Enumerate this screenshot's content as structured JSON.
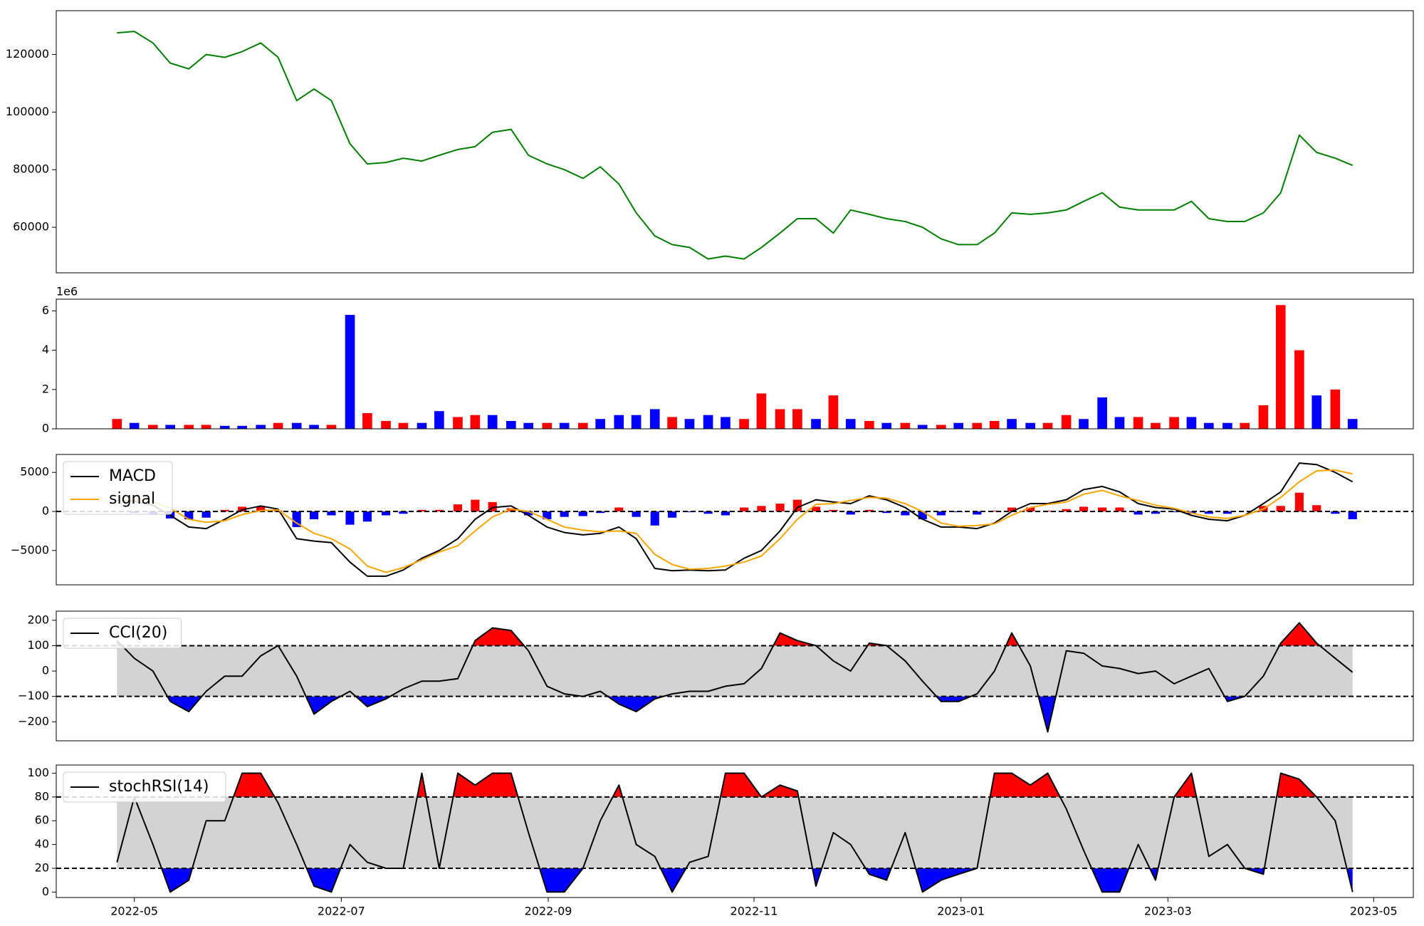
{
  "chart_data": {
    "type": "multi-panel",
    "x": [
      2022.319,
      2022.333,
      2022.348,
      2022.362,
      2022.377,
      2022.391,
      2022.406,
      2022.42,
      2022.435,
      2022.449,
      2022.464,
      2022.478,
      2022.492,
      2022.507,
      2022.521,
      2022.536,
      2022.55,
      2022.565,
      2022.579,
      2022.594,
      2022.608,
      2022.622,
      2022.637,
      2022.651,
      2022.666,
      2022.68,
      2022.695,
      2022.709,
      2022.724,
      2022.738,
      2022.753,
      2022.767,
      2022.781,
      2022.796,
      2022.81,
      2022.825,
      2022.839,
      2022.854,
      2022.868,
      2022.883,
      2022.897,
      2022.911,
      2022.926,
      2022.94,
      2022.955,
      2022.969,
      2022.984,
      2022.998,
      2023.013,
      2023.027,
      2023.041,
      2023.056,
      2023.07,
      2023.085,
      2023.099,
      2023.114,
      2023.128,
      2023.143,
      2023.157,
      2023.172,
      2023.186,
      2023.2,
      2023.215,
      2023.229,
      2023.244,
      2023.258,
      2023.273,
      2023.287,
      2023.302,
      2023.316
    ],
    "xlim": [
      2022.27,
      2023.365
    ],
    "xticks": [
      {
        "value": 2022.333,
        "label": "2022-05"
      },
      {
        "value": 2022.5,
        "label": "2022-07"
      },
      {
        "value": 2022.667,
        "label": "2022-09"
      },
      {
        "value": 2022.833,
        "label": "2022-11"
      },
      {
        "value": 2023.0,
        "label": "2023-01"
      },
      {
        "value": 2023.167,
        "label": "2023-03"
      },
      {
        "value": 2023.333,
        "label": "2023-05"
      }
    ],
    "panels": [
      {
        "type": "line",
        "color": "green",
        "values": [
          127500,
          128000,
          124000,
          117000,
          115000,
          120000,
          119000,
          121000,
          124000,
          119000,
          104000,
          108000,
          104000,
          89000,
          82000,
          82500,
          84000,
          83000,
          85000,
          87000,
          88000,
          93000,
          94000,
          85000,
          82000,
          80000,
          77000,
          81000,
          75000,
          65000,
          57000,
          54000,
          53000,
          49000,
          50000,
          49000,
          53000,
          58000,
          63000,
          63000,
          58000,
          66000,
          64500,
          63000,
          62000,
          60000,
          56000,
          54000,
          54000,
          58000,
          65000,
          64500,
          65000,
          66000,
          69000,
          72000,
          67000,
          66000,
          66000,
          66000,
          69000,
          63000,
          62000,
          62000,
          65000,
          72000,
          92000,
          86000,
          84000,
          81500
        ],
        "ylim": [
          44200,
          135200
        ],
        "yticks": [
          60000,
          80000,
          100000,
          120000
        ]
      },
      {
        "type": "bar",
        "offset_label": "1e6",
        "values": [
          0.5,
          0.3,
          0.2,
          0.2,
          0.2,
          0.2,
          0.15,
          0.15,
          0.2,
          0.3,
          0.3,
          0.2,
          0.2,
          5.8,
          0.8,
          0.4,
          0.3,
          0.3,
          0.9,
          0.6,
          0.7,
          0.7,
          0.4,
          0.3,
          0.3,
          0.3,
          0.3,
          0.5,
          0.7,
          0.7,
          1.0,
          0.6,
          0.5,
          0.7,
          0.6,
          0.5,
          1.8,
          1.0,
          1.0,
          0.5,
          1.7,
          0.5,
          0.4,
          0.3,
          0.3,
          0.2,
          0.2,
          0.3,
          0.3,
          0.4,
          0.5,
          0.3,
          0.3,
          0.7,
          0.5,
          1.6,
          0.6,
          0.6,
          0.3,
          0.6,
          0.6,
          0.3,
          0.3,
          0.3,
          1.2,
          6.3,
          4.0,
          1.7,
          2.0,
          0.5
        ],
        "colors": [
          "red",
          "blue",
          "red",
          "blue",
          "red",
          "red",
          "blue",
          "blue",
          "blue",
          "red",
          "blue",
          "blue",
          "red",
          "blue",
          "red",
          "red",
          "red",
          "blue",
          "blue",
          "red",
          "red",
          "blue",
          "blue",
          "blue",
          "red",
          "blue",
          "red",
          "blue",
          "blue",
          "blue",
          "blue",
          "red",
          "blue",
          "blue",
          "blue",
          "red",
          "red",
          "red",
          "red",
          "blue",
          "red",
          "blue",
          "red",
          "blue",
          "red",
          "blue",
          "red",
          "blue",
          "red",
          "red",
          "blue",
          "blue",
          "red",
          "red",
          "blue",
          "blue",
          "blue",
          "red",
          "red",
          "red",
          "blue",
          "blue",
          "blue",
          "red",
          "red",
          "red",
          "red",
          "blue",
          "red",
          "blue"
        ],
        "ylim": [
          0,
          6.6
        ],
        "yticks": [
          0,
          2,
          4,
          6
        ]
      },
      {
        "type": "macd",
        "legend": "upper left",
        "hlines": [
          0
        ],
        "series": [
          {
            "name": "MACD",
            "color": "black",
            "values": [
              1500,
              1300,
              800,
              -500,
              -2000,
              -2200,
              -1000,
              200,
              700,
              300,
              -3500,
              -3800,
              -4000,
              -6500,
              -8300,
              -8300,
              -7500,
              -6000,
              -5000,
              -3500,
              -1000,
              500,
              700,
              -500,
              -2000,
              -2700,
              -3000,
              -2800,
              -2000,
              -3500,
              -7300,
              -7600,
              -7500,
              -7600,
              -7500,
              -6000,
              -5000,
              -2500,
              500,
              1500,
              1200,
              1000,
              2000,
              1500,
              500,
              -1000,
              -2000,
              -2000,
              -2200,
              -1500,
              0,
              1000,
              1000,
              1500,
              2800,
              3200,
              2500,
              1000,
              500,
              300,
              -500,
              -1000,
              -1200,
              -500,
              1000,
              2500,
              6200,
              6000,
              5000,
              3800
            ]
          },
          {
            "name": "signal",
            "color": "orange",
            "values": [
              1500,
              1500,
              1200,
              400,
              -1000,
              -1400,
              -1200,
              -400,
              100,
              200,
              -1500,
              -2800,
              -3500,
              -4800,
              -7000,
              -7800,
              -7200,
              -6200,
              -5200,
              -4400,
              -2500,
              -700,
              300,
              0,
              -1000,
              -2000,
              -2400,
              -2600,
              -2500,
              -2800,
              -5500,
              -6800,
              -7400,
              -7300,
              -7000,
              -6500,
              -5700,
              -3500,
              -1000,
              900,
              1000,
              1400,
              1800,
              1700,
              1000,
              0,
              -1500,
              -1900,
              -1800,
              -1600,
              -500,
              500,
              900,
              1200,
              2200,
              2700,
              2000,
              1400,
              800,
              400,
              -200,
              -700,
              -900,
              -500,
              300,
              1800,
              3800,
              5200,
              5300,
              4800
            ]
          }
        ],
        "histogram": {
          "positive_color": "red",
          "negative_color": "blue",
          "values": [
            0,
            -200,
            -400,
            -900,
            -1000,
            -800,
            200,
            600,
            600,
            100,
            -2000,
            -1000,
            -500,
            -1700,
            -1300,
            -500,
            -300,
            200,
            200,
            900,
            1500,
            1200,
            400,
            -500,
            -1000,
            -700,
            -600,
            -200,
            500,
            -700,
            -1800,
            -800,
            -100,
            -300,
            -500,
            500,
            700,
            1000,
            1500,
            600,
            200,
            -400,
            200,
            -200,
            -500,
            -1000,
            -500,
            -100,
            -400,
            100,
            500,
            500,
            100,
            300,
            600,
            500,
            500,
            -400,
            -300,
            -100,
            -300,
            -300,
            -300,
            0,
            700,
            700,
            2400,
            800,
            -300,
            -1000
          ]
        },
        "ylim": [
          -9400,
          7300
        ],
        "yticks": [
          {
            "value": -5000,
            "label": "−5000"
          },
          0,
          5000
        ]
      },
      {
        "type": "oscillator",
        "legend": "upper left",
        "thresholds": [
          -100,
          100
        ],
        "band_color": "lightgray",
        "upper_color": "red",
        "lower_color": "blue",
        "series": [
          {
            "name": "CCI(20)",
            "color": "black",
            "values": [
              120,
              50,
              0,
              -120,
              -160,
              -80,
              -20,
              -20,
              60,
              100,
              -20,
              -170,
              -120,
              -80,
              -140,
              -110,
              -70,
              -40,
              -40,
              -30,
              120,
              170,
              160,
              80,
              -60,
              -90,
              -100,
              -80,
              -130,
              -160,
              -110,
              -90,
              -80,
              -80,
              -60,
              -50,
              10,
              150,
              120,
              100,
              40,
              0,
              110,
              100,
              40,
              -40,
              -120,
              -120,
              -90,
              0,
              150,
              20,
              -240,
              80,
              70,
              20,
              10,
              -10,
              0,
              -50,
              -20,
              10,
              -120,
              -100,
              -20,
              110,
              190,
              110,
              50,
              -5
            ]
          }
        ],
        "ylim": [
          -275,
          236
        ],
        "yticks": [
          {
            "value": -200,
            "label": "−200"
          },
          {
            "value": -100,
            "label": "−100"
          },
          0,
          100,
          200
        ]
      },
      {
        "type": "oscillator",
        "legend": "upper left",
        "thresholds": [
          20,
          80
        ],
        "band_color": "lightgray",
        "upper_color": "red",
        "lower_color": "blue",
        "series": [
          {
            "name": "stochRSI(14)",
            "color": "black",
            "values": [
              25,
              80,
              40,
              0,
              10,
              60,
              60,
              100,
              100,
              75,
              40,
              5,
              0,
              40,
              25,
              20,
              20,
              100,
              20,
              100,
              90,
              100,
              100,
              50,
              0,
              0,
              20,
              60,
              90,
              40,
              30,
              0,
              25,
              30,
              100,
              100,
              80,
              90,
              85,
              5,
              50,
              40,
              15,
              10,
              50,
              0,
              10,
              15,
              20,
              100,
              100,
              90,
              100,
              70,
              35,
              0,
              0,
              40,
              10,
              80,
              100,
              30,
              40,
              20,
              15,
              100,
              95,
              80,
              60,
              0
            ]
          }
        ],
        "ylim": [
          -4.6,
          106.9
        ],
        "yticks": [
          0,
          20,
          40,
          60,
          80,
          100
        ]
      }
    ]
  }
}
